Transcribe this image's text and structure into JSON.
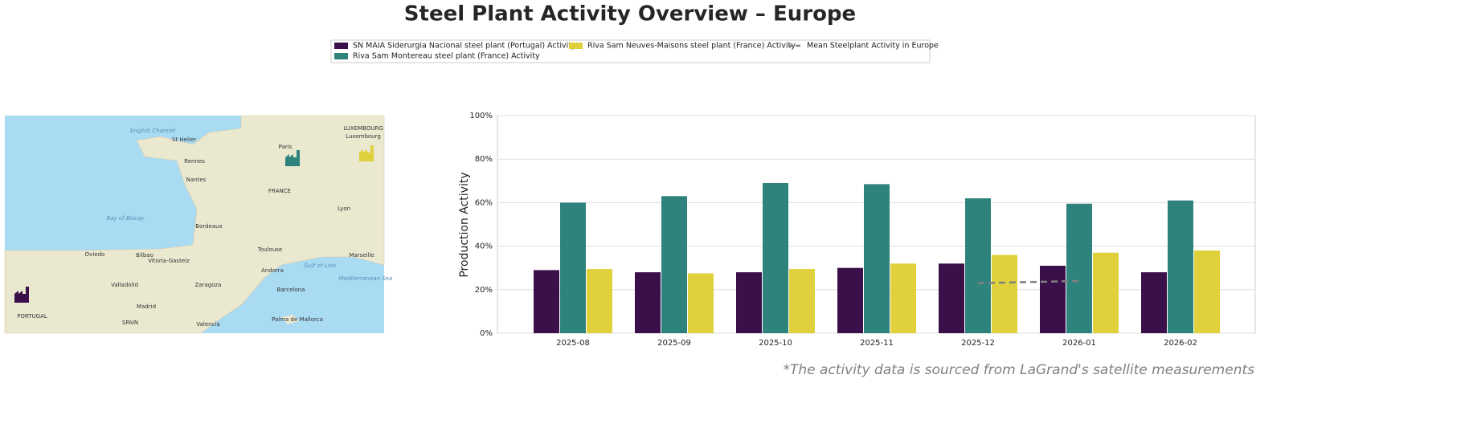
{
  "chart_data": {
    "type": "bar",
    "title": "Steel Plant Activity Overview – Europe",
    "ylabel": "Production Activity",
    "categories": [
      "2025-08",
      "2025-09",
      "2025-10",
      "2025-11",
      "2025-12",
      "2026-01",
      "2026-02"
    ],
    "series": [
      {
        "name": "SN MAIA Siderurgia Nacional steel plant (Portugal) Activity",
        "color": "#3b0f4a",
        "values": [
          29,
          28,
          28,
          30,
          32,
          31,
          28
        ]
      },
      {
        "name": "Riva Sam Montereau steel plant (France) Activity",
        "color": "#2e847d",
        "values": [
          60,
          63,
          69,
          68.5,
          62,
          59.5,
          61
        ]
      },
      {
        "name": "Riva Sam Neuves-Maisons steel plant (France) Activity",
        "color": "#e0d13c",
        "values": [
          29.5,
          27.5,
          29.5,
          32,
          36,
          37,
          38
        ]
      },
      {
        "name": "Mean Steelplant Activity in Europe",
        "color": "#808080",
        "kind": "line",
        "dashed": true,
        "values": [
          null,
          null,
          null,
          null,
          23,
          24,
          null
        ]
      }
    ],
    "ylim": [
      0,
      100
    ],
    "yticks": [
      {
        "value": 0,
        "label": "0%"
      },
      {
        "value": 20,
        "label": "20%"
      },
      {
        "value": 40,
        "label": "40%"
      },
      {
        "value": 60,
        "label": "60%"
      },
      {
        "value": 80,
        "label": "80%"
      },
      {
        "value": 100,
        "label": "100%"
      }
    ],
    "grid": true,
    "footnote": "*The activity data is sourced from LaGrand's satellite measurements"
  },
  "map": {
    "labels": [
      "English Channel",
      "St Helier",
      "Paris",
      "Rennes",
      "Nantes",
      "FRANCE",
      "Luxembourg",
      "LUXEMBOURG",
      "Bay of Biscay",
      "Bordeaux",
      "Lyon",
      "Toulouse",
      "Marseille",
      "Oviedo",
      "Bilbao",
      "Vitoria-Gasteiz",
      "Andorra",
      "Gulf of Lion",
      "Mediterranean Sea",
      "Valladolid",
      "Zaragoza",
      "Barcelona",
      "Madrid",
      "Valencia",
      "Palma de Mallorca",
      "PORTUGAL",
      "SPAIN"
    ]
  }
}
